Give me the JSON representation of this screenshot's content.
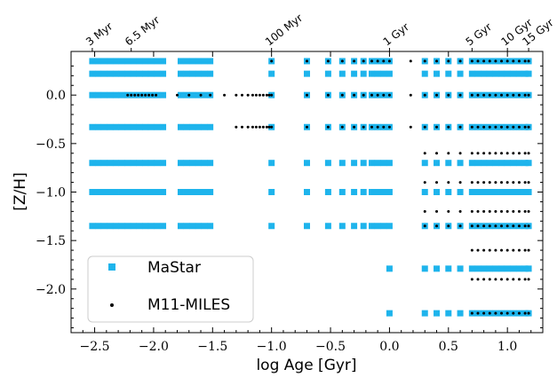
{
  "chart_data": {
    "type": "scatter",
    "xlabel": "log Age [Gyr]",
    "ylabel": "[Z/H]",
    "xlim": [
      -2.7,
      1.3
    ],
    "ylim": [
      -2.45,
      0.45
    ],
    "x_ticks": [
      {
        "value": -2.5,
        "label": "−2.5"
      },
      {
        "value": -2.0,
        "label": "−2.0"
      },
      {
        "value": -1.5,
        "label": "−1.5"
      },
      {
        "value": -1.0,
        "label": "−1.0"
      },
      {
        "value": -0.5,
        "label": "−0.5"
      },
      {
        "value": 0.0,
        "label": "0.0"
      },
      {
        "value": 0.5,
        "label": "0.5"
      },
      {
        "value": 1.0,
        "label": "1.0"
      }
    ],
    "y_ticks": [
      {
        "value": 0.0,
        "label": "0.0"
      },
      {
        "value": -0.5,
        "label": "−0.5"
      },
      {
        "value": -1.0,
        "label": "−1.0"
      },
      {
        "value": -1.5,
        "label": "−1.5"
      },
      {
        "value": -2.0,
        "label": "−2.0"
      }
    ],
    "top_ticks": [
      {
        "value": -2.52,
        "label": "3 Myr"
      },
      {
        "value": -2.19,
        "label": "6.5 Myr"
      },
      {
        "value": -1.0,
        "label": "100 Myr"
      },
      {
        "value": 0.0,
        "label": "1 Gyr"
      },
      {
        "value": 0.7,
        "label": "5 Gyr"
      },
      {
        "value": 1.0,
        "label": "10 Gyr"
      },
      {
        "value": 1.18,
        "label": "15 Gyr"
      }
    ],
    "legend": {
      "position": "lower-left",
      "entries": [
        "MaStar",
        "M11-MILES"
      ]
    },
    "series": [
      {
        "name": "MaStar",
        "marker": "square",
        "color": "#1eb4ec",
        "rows": [
          {
            "z": 0.35,
            "ages": [
              -2.52,
              -2.47,
              -2.42,
              -2.37,
              -2.32,
              -2.27,
              -2.22,
              -2.17,
              -2.12,
              -2.07,
              -2.02,
              -1.97,
              -1.92,
              -1.77,
              -1.72,
              -1.67,
              -1.62,
              -1.57,
              -1.52,
              -1.0,
              -0.7,
              -0.52,
              -0.4,
              -0.3,
              -0.22,
              -0.15,
              -0.1,
              -0.05,
              0.0,
              0.3,
              0.4,
              0.5,
              0.6,
              0.7,
              0.75,
              0.8,
              0.85,
              0.9,
              0.95,
              1.0,
              1.05,
              1.1,
              1.15,
              1.18
            ]
          },
          {
            "z": 0.22,
            "ages": [
              -2.52,
              -2.47,
              -2.42,
              -2.37,
              -2.32,
              -2.27,
              -2.22,
              -2.17,
              -2.12,
              -2.07,
              -2.02,
              -1.97,
              -1.92,
              -1.77,
              -1.72,
              -1.67,
              -1.62,
              -1.57,
              -1.52,
              -1.0,
              -0.7,
              -0.52,
              -0.4,
              -0.3,
              -0.22,
              -0.15,
              -0.1,
              -0.05,
              0.0,
              0.3,
              0.4,
              0.5,
              0.6,
              0.7,
              0.75,
              0.8,
              0.85,
              0.9,
              0.95,
              1.0,
              1.05,
              1.1,
              1.15,
              1.18
            ]
          },
          {
            "z": 0.0,
            "ages": [
              -2.52,
              -2.47,
              -2.42,
              -2.37,
              -2.32,
              -2.27,
              -2.22,
              -2.17,
              -2.12,
              -2.07,
              -2.02,
              -1.97,
              -1.92,
              -1.77,
              -1.72,
              -1.67,
              -1.62,
              -1.57,
              -1.52,
              -1.0,
              -0.7,
              -0.52,
              -0.4,
              -0.3,
              -0.22,
              -0.15,
              -0.1,
              -0.05,
              0.0,
              0.3,
              0.4,
              0.5,
              0.6,
              0.7,
              0.75,
              0.8,
              0.85,
              0.9,
              0.95,
              1.0,
              1.05,
              1.1,
              1.15,
              1.18
            ]
          },
          {
            "z": -0.33,
            "ages": [
              -2.52,
              -2.47,
              -2.42,
              -2.37,
              -2.32,
              -2.27,
              -2.22,
              -2.17,
              -2.12,
              -2.07,
              -2.02,
              -1.97,
              -1.92,
              -1.77,
              -1.72,
              -1.67,
              -1.62,
              -1.57,
              -1.52,
              -1.0,
              -0.7,
              -0.52,
              -0.4,
              -0.3,
              -0.22,
              -0.15,
              -0.1,
              -0.05,
              0.0,
              0.3,
              0.4,
              0.5,
              0.6,
              0.7,
              0.75,
              0.8,
              0.85,
              0.9,
              0.95,
              1.0,
              1.05,
              1.1,
              1.15,
              1.18
            ]
          },
          {
            "z": -0.7,
            "ages": [
              -2.52,
              -2.47,
              -2.42,
              -2.37,
              -2.32,
              -2.27,
              -2.22,
              -2.17,
              -2.12,
              -2.07,
              -2.02,
              -1.97,
              -1.92,
              -1.77,
              -1.72,
              -1.67,
              -1.62,
              -1.57,
              -1.52,
              -1.0,
              -0.7,
              -0.52,
              -0.4,
              -0.3,
              -0.22,
              -0.15,
              -0.1,
              -0.05,
              0.0,
              0.3,
              0.4,
              0.5,
              0.6,
              0.7,
              0.75,
              0.8,
              0.85,
              0.9,
              0.95,
              1.0,
              1.05,
              1.1,
              1.15,
              1.18
            ]
          },
          {
            "z": -1.0,
            "ages": [
              -2.52,
              -2.47,
              -2.42,
              -2.37,
              -2.32,
              -2.27,
              -2.22,
              -2.17,
              -2.12,
              -2.07,
              -2.02,
              -1.97,
              -1.92,
              -1.77,
              -1.72,
              -1.67,
              -1.62,
              -1.57,
              -1.52,
              -1.0,
              -0.7,
              -0.52,
              -0.4,
              -0.3,
              -0.22,
              -0.15,
              -0.1,
              -0.05,
              0.0,
              0.3,
              0.4,
              0.5,
              0.6,
              0.7,
              0.75,
              0.8,
              0.85,
              0.9,
              0.95,
              1.0,
              1.05,
              1.1,
              1.15,
              1.18
            ]
          },
          {
            "z": -1.35,
            "ages": [
              -2.52,
              -2.47,
              -2.42,
              -2.37,
              -2.32,
              -2.27,
              -2.22,
              -2.17,
              -2.12,
              -2.07,
              -2.02,
              -1.97,
              -1.92,
              -1.77,
              -1.72,
              -1.67,
              -1.62,
              -1.57,
              -1.52,
              -1.0,
              -0.7,
              -0.52,
              -0.4,
              -0.3,
              -0.22,
              -0.15,
              -0.1,
              -0.05,
              0.0,
              0.3,
              0.4,
              0.5,
              0.6,
              0.7,
              0.75,
              0.8,
              0.85,
              0.9,
              0.95,
              1.0,
              1.05,
              1.1,
              1.15,
              1.18
            ]
          },
          {
            "z": -1.79,
            "ages": [
              0.0,
              0.3,
              0.4,
              0.5,
              0.6,
              0.7,
              0.75,
              0.8,
              0.85,
              0.9,
              0.95,
              1.0,
              1.05,
              1.1,
              1.15,
              1.18
            ]
          },
          {
            "z": -2.25,
            "ages": [
              0.0,
              0.3,
              0.4,
              0.5,
              0.6,
              0.7,
              0.75,
              0.8,
              0.85,
              0.9,
              0.95,
              1.0,
              1.05,
              1.1,
              1.15,
              1.18
            ]
          }
        ]
      },
      {
        "name": "M11-MILES",
        "marker": "dot",
        "color": "#000000",
        "rows": [
          {
            "z": 0.35,
            "ages": [
              -1.0,
              -0.7,
              -0.52,
              -0.4,
              -0.3,
              -0.22,
              -0.15,
              -0.1,
              -0.05,
              0.0,
              0.18,
              0.3,
              0.4,
              0.5,
              0.6,
              0.7,
              0.75,
              0.8,
              0.85,
              0.9,
              0.95,
              1.0,
              1.05,
              1.1,
              1.15,
              1.18
            ]
          },
          {
            "z": 0.0,
            "ages": [
              -2.22,
              -2.19,
              -2.16,
              -2.13,
              -2.1,
              -2.07,
              -2.04,
              -2.01,
              -1.98,
              -1.8,
              -1.7,
              -1.6,
              -1.52,
              -1.4,
              -1.3,
              -1.25,
              -1.2,
              -1.16,
              -1.13,
              -1.1,
              -1.07,
              -1.04,
              -1.02,
              -1.0,
              -0.7,
              -0.52,
              -0.4,
              -0.3,
              -0.22,
              -0.15,
              -0.1,
              -0.05,
              0.0,
              0.18,
              0.3,
              0.4,
              0.5,
              0.6,
              0.7,
              0.75,
              0.8,
              0.85,
              0.9,
              0.95,
              1.0,
              1.05,
              1.1,
              1.15,
              1.18
            ]
          },
          {
            "z": -0.33,
            "ages": [
              -1.3,
              -1.25,
              -1.2,
              -1.16,
              -1.13,
              -1.1,
              -1.07,
              -1.04,
              -1.02,
              -1.0,
              -0.7,
              -0.52,
              -0.4,
              -0.3,
              -0.22,
              -0.15,
              -0.1,
              -0.05,
              0.0,
              0.18,
              0.3,
              0.4,
              0.5,
              0.6,
              0.7,
              0.75,
              0.8,
              0.85,
              0.9,
              0.95,
              1.0,
              1.05,
              1.1,
              1.15,
              1.18
            ]
          },
          {
            "z": -0.6,
            "ages": [
              0.3,
              0.4,
              0.5,
              0.6,
              0.7,
              0.75,
              0.8,
              0.85,
              0.9,
              0.95,
              1.0,
              1.05,
              1.1,
              1.15,
              1.18
            ]
          },
          {
            "z": -0.9,
            "ages": [
              0.3,
              0.4,
              0.5,
              0.6,
              0.7,
              0.75,
              0.8,
              0.85,
              0.9,
              0.95,
              1.0,
              1.05,
              1.1,
              1.15,
              1.18
            ]
          },
          {
            "z": -1.2,
            "ages": [
              0.3,
              0.4,
              0.5,
              0.6,
              0.7,
              0.75,
              0.8,
              0.85,
              0.9,
              0.95,
              1.0,
              1.05,
              1.1,
              1.15,
              1.18
            ]
          },
          {
            "z": -1.35,
            "ages": [
              0.3,
              0.4,
              0.5,
              0.6,
              0.7,
              0.75,
              0.8,
              0.85,
              0.9,
              0.95,
              1.0,
              1.05,
              1.1,
              1.15,
              1.18
            ]
          },
          {
            "z": -1.6,
            "ages": [
              0.7,
              0.75,
              0.8,
              0.85,
              0.9,
              0.95,
              1.0,
              1.05,
              1.1,
              1.15,
              1.18
            ]
          },
          {
            "z": -1.9,
            "ages": [
              0.7,
              0.75,
              0.8,
              0.85,
              0.9,
              0.95,
              1.0,
              1.05,
              1.1,
              1.15,
              1.18
            ]
          },
          {
            "z": -2.25,
            "ages": [
              0.7,
              0.75,
              0.8,
              0.85,
              0.9,
              0.95,
              1.0,
              1.05,
              1.1,
              1.15,
              1.18
            ]
          }
        ]
      }
    ]
  }
}
